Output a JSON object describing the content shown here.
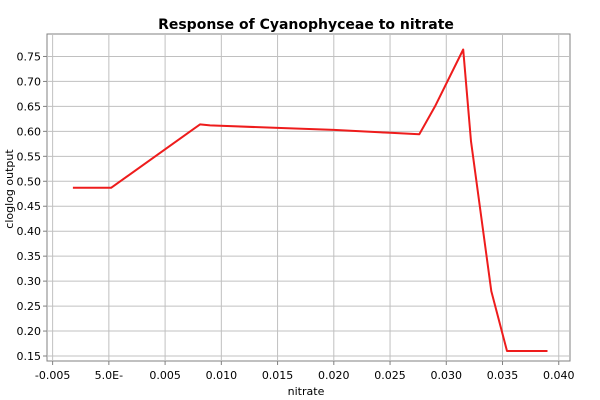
{
  "chart_data": {
    "type": "line",
    "title": "Response of Cyanophyceae to nitrate",
    "xlabel": "nitrate",
    "ylabel": "cloglog output",
    "xlim": [
      -0.0055,
      0.041
    ],
    "ylim": [
      0.14,
      0.795
    ],
    "grid": true,
    "color": "#ee1c1c",
    "x_ticks": [
      {
        "value": -0.005,
        "label": "-0.005"
      },
      {
        "value": 0.0,
        "label": "5.0E-"
      },
      {
        "value": 0.005,
        "label": "0.005"
      },
      {
        "value": 0.01,
        "label": "0.010"
      },
      {
        "value": 0.015,
        "label": "0.015"
      },
      {
        "value": 0.02,
        "label": "0.020"
      },
      {
        "value": 0.025,
        "label": "0.025"
      },
      {
        "value": 0.03,
        "label": "0.030"
      },
      {
        "value": 0.035,
        "label": "0.035"
      },
      {
        "value": 0.04,
        "label": "0.040"
      }
    ],
    "y_ticks": [
      {
        "value": 0.15,
        "label": "0.15"
      },
      {
        "value": 0.2,
        "label": "0.20"
      },
      {
        "value": 0.25,
        "label": "0.25"
      },
      {
        "value": 0.3,
        "label": "0.30"
      },
      {
        "value": 0.35,
        "label": "0.35"
      },
      {
        "value": 0.4,
        "label": "0.40"
      },
      {
        "value": 0.45,
        "label": "0.45"
      },
      {
        "value": 0.5,
        "label": "0.50"
      },
      {
        "value": 0.55,
        "label": "0.55"
      },
      {
        "value": 0.6,
        "label": "0.60"
      },
      {
        "value": 0.65,
        "label": "0.65"
      },
      {
        "value": 0.7,
        "label": "0.70"
      },
      {
        "value": 0.75,
        "label": "0.75"
      }
    ],
    "series": [
      {
        "x": [
          -0.0032,
          0.0002,
          0.0081,
          0.009,
          0.015,
          0.02,
          0.025,
          0.0276,
          0.029,
          0.0315,
          0.0322,
          0.034,
          0.0354,
          0.039
        ],
        "y": [
          0.487,
          0.487,
          0.614,
          0.612,
          0.607,
          0.603,
          0.597,
          0.594,
          0.65,
          0.764,
          0.58,
          0.28,
          0.16,
          0.16
        ]
      }
    ]
  }
}
